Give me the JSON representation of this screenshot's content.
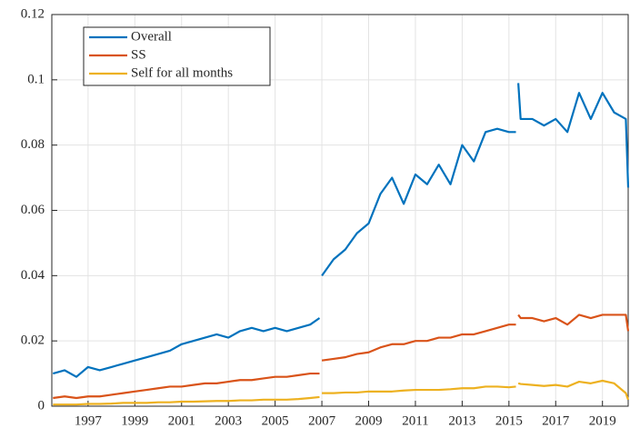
{
  "chart_data": {
    "type": "line",
    "x": [
      1995.5,
      1996,
      1996.5,
      1997,
      1997.5,
      1998,
      1998.5,
      1999,
      1999.5,
      2000,
      2000.5,
      2001,
      2001.5,
      2002,
      2002.5,
      2003,
      2003.5,
      2004,
      2004.5,
      2005,
      2005.5,
      2006,
      2006.5,
      2006.9,
      2006.95,
      2007,
      2007.5,
      2008,
      2008.5,
      2009,
      2009.5,
      2010,
      2010.5,
      2011,
      2011.5,
      2012,
      2012.5,
      2013,
      2013.5,
      2014,
      2014.5,
      2015,
      2015.3,
      2015.35,
      2015.4,
      2015.5,
      2016,
      2016.5,
      2017,
      2017.5,
      2018,
      2018.5,
      2019,
      2019.5,
      2020,
      2020.1
    ],
    "series": [
      {
        "name": "Overall",
        "color": "#0072bd",
        "values": [
          0.01,
          0.011,
          0.009,
          0.012,
          0.011,
          0.012,
          0.013,
          0.014,
          0.015,
          0.016,
          0.017,
          0.019,
          0.02,
          0.021,
          0.022,
          0.021,
          0.023,
          0.024,
          0.023,
          0.024,
          0.023,
          0.024,
          0.025,
          0.027,
          null,
          0.04,
          0.045,
          0.048,
          0.053,
          0.056,
          0.065,
          0.07,
          0.062,
          0.071,
          0.068,
          0.074,
          0.068,
          0.08,
          0.075,
          0.084,
          0.085,
          0.084,
          0.084,
          null,
          0.099,
          0.088,
          0.088,
          0.086,
          0.088,
          0.084,
          0.096,
          0.088,
          0.096,
          0.09,
          0.088,
          0.067
        ]
      },
      {
        "name": "SS",
        "color": "#d95319",
        "values": [
          0.0025,
          0.003,
          0.0025,
          0.003,
          0.003,
          0.0035,
          0.004,
          0.0045,
          0.005,
          0.0055,
          0.006,
          0.006,
          0.0065,
          0.007,
          0.007,
          0.0075,
          0.008,
          0.008,
          0.0085,
          0.009,
          0.009,
          0.0095,
          0.01,
          0.01,
          null,
          0.014,
          0.0145,
          0.015,
          0.016,
          0.0165,
          0.018,
          0.019,
          0.019,
          0.02,
          0.02,
          0.021,
          0.021,
          0.022,
          0.022,
          0.023,
          0.024,
          0.025,
          0.025,
          null,
          0.028,
          0.027,
          0.027,
          0.026,
          0.027,
          0.025,
          0.028,
          0.027,
          0.028,
          0.028,
          0.028,
          0.023
        ]
      },
      {
        "name": "Self for all months",
        "color": "#edb120",
        "values": [
          0.0005,
          0.0005,
          0.0005,
          0.0007,
          0.0007,
          0.0008,
          0.001,
          0.001,
          0.001,
          0.0012,
          0.0012,
          0.0014,
          0.0014,
          0.0015,
          0.0016,
          0.0016,
          0.0018,
          0.0018,
          0.002,
          0.002,
          0.002,
          0.0022,
          0.0025,
          0.0028,
          null,
          0.004,
          0.004,
          0.0042,
          0.0042,
          0.0045,
          0.0045,
          0.0045,
          0.0048,
          0.005,
          0.005,
          0.005,
          0.0052,
          0.0055,
          0.0055,
          0.006,
          0.006,
          0.0058,
          0.006,
          null,
          0.007,
          0.0068,
          0.0065,
          0.0062,
          0.0065,
          0.006,
          0.0075,
          0.007,
          0.0078,
          0.007,
          0.004,
          0.002
        ]
      }
    ],
    "xlim": [
      1995.45,
      2020.1
    ],
    "xticks": [
      1997,
      1999,
      2001,
      2003,
      2005,
      2007,
      2009,
      2011,
      2013,
      2015,
      2017,
      2019
    ],
    "ylim": [
      0,
      0.12
    ],
    "yticks": [
      0,
      0.02,
      0.04,
      0.06,
      0.08,
      0.1,
      0.12
    ],
    "grid": true,
    "legend": "upper-left"
  }
}
